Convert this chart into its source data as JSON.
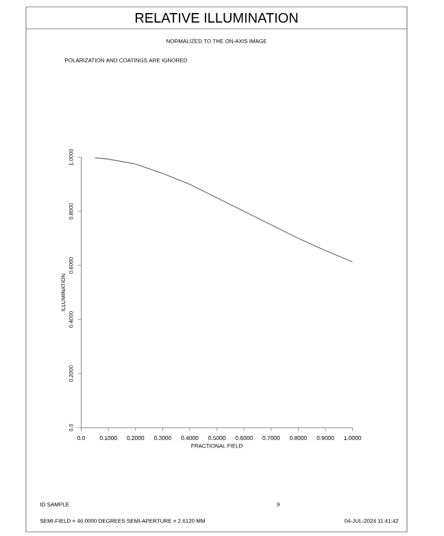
{
  "chart_data": {
    "type": "line",
    "title": "RELATIVE ILLUMINATION",
    "subtitle": "NORMALIZED TO THE ON-AXIS IMAGE",
    "xlabel": "FRACTIONAL FIELD",
    "ylabel": "ILLUMINATION",
    "x": [
      0.05,
      0.1,
      0.2,
      0.3,
      0.4,
      0.5,
      0.6,
      0.7,
      0.8,
      0.9,
      1.0
    ],
    "series": [
      {
        "color": "#404040",
        "values": [
          0.998,
          0.993,
          0.975,
          0.94,
          0.9,
          0.85,
          0.8,
          0.75,
          0.7,
          0.655,
          0.613
        ]
      }
    ],
    "xlim": [
      0,
      1
    ],
    "ylim": [
      0,
      1
    ],
    "xticks": [
      {
        "value": 0,
        "label": "0.0"
      },
      {
        "value": 0.1,
        "label": "0.1000"
      },
      {
        "value": 0.2,
        "label": "0.2000"
      },
      {
        "value": 0.3,
        "label": "0.3000"
      },
      {
        "value": 0.4,
        "label": "0.4000"
      },
      {
        "value": 0.5,
        "label": "0.5000"
      },
      {
        "value": 0.6,
        "label": "0.6000"
      },
      {
        "value": 0.7,
        "label": "0.7000"
      },
      {
        "value": 0.8,
        "label": "0.8000"
      },
      {
        "value": 0.9,
        "label": "0.9000"
      },
      {
        "value": 1,
        "label": "1.0000"
      }
    ],
    "yticks": [
      {
        "value": 0,
        "label": "0.0"
      },
      {
        "value": 0.2,
        "label": "0.2000"
      },
      {
        "value": 0.4,
        "label": "0.4000"
      },
      {
        "value": 0.6,
        "label": "0.6000"
      },
      {
        "value": 0.8,
        "label": "0.8000"
      },
      {
        "value": 1,
        "label": "1.0000"
      }
    ],
    "grid": false,
    "marker": "none",
    "line_style": "solid",
    "annotations": [
      "POLARIZATION AND COATINGS ARE IGNORED",
      "ID SAMPLE",
      "9",
      "SEMI-FIELD =  46.0000 DEGREES   SEMI-APERTURE =  2.6120 MM",
      "04-JUL-2024 11:41:42"
    ]
  }
}
